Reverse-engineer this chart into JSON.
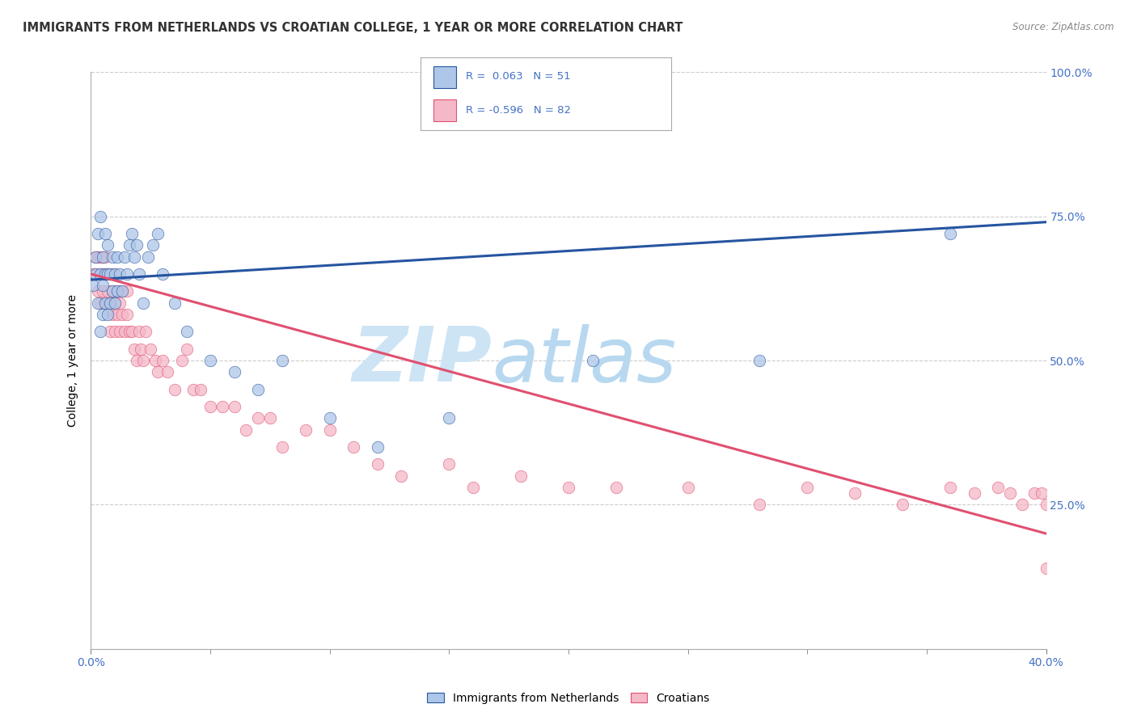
{
  "title": "IMMIGRANTS FROM NETHERLANDS VS CROATIAN COLLEGE, 1 YEAR OR MORE CORRELATION CHART",
  "source": "Source: ZipAtlas.com",
  "xlabel_ticks_show": [
    "0.0%",
    "40.0%"
  ],
  "xlabel_tick_vals_show": [
    0.0,
    0.4
  ],
  "xlabel_minor_tick_vals": [
    0.05,
    0.1,
    0.15,
    0.2,
    0.25,
    0.3,
    0.35
  ],
  "ylabel": "College, 1 year or more",
  "ylabel_ticks": [
    "100.0%",
    "75.0%",
    "50.0%",
    "25.0%"
  ],
  "ylabel_tick_vals": [
    1.0,
    0.75,
    0.5,
    0.25
  ],
  "xlim": [
    0.0,
    0.4
  ],
  "ylim": [
    0.0,
    1.0
  ],
  "legend_labels": [
    "Immigrants from Netherlands",
    "Croatians"
  ],
  "R_netherlands": 0.063,
  "N_netherlands": 51,
  "R_croatians": -0.596,
  "N_croatians": 82,
  "color_netherlands": "#aec6e8",
  "color_croatians": "#f4b8c8",
  "line_color_netherlands": "#2655a0",
  "line_color_croatians": "#e05070",
  "watermark_zip": "ZIP",
  "watermark_atlas": "atlas",
  "watermark_color": "#ddeeff",
  "watermark_atlas_color": "#c8ddf0",
  "background_color": "#ffffff",
  "grid_color": "#cccccc",
  "right_tick_color": "#4472c4",
  "title_fontsize": 10.5,
  "label_fontsize": 10,
  "tick_fontsize": 10,
  "netherlands_x": [
    0.001,
    0.002,
    0.002,
    0.003,
    0.003,
    0.004,
    0.004,
    0.004,
    0.005,
    0.005,
    0.005,
    0.006,
    0.006,
    0.006,
    0.007,
    0.007,
    0.007,
    0.008,
    0.008,
    0.009,
    0.009,
    0.01,
    0.01,
    0.011,
    0.011,
    0.012,
    0.013,
    0.014,
    0.015,
    0.016,
    0.017,
    0.018,
    0.019,
    0.02,
    0.022,
    0.024,
    0.026,
    0.028,
    0.03,
    0.035,
    0.04,
    0.05,
    0.06,
    0.07,
    0.08,
    0.1,
    0.12,
    0.15,
    0.21,
    0.28,
    0.36
  ],
  "netherlands_y": [
    0.63,
    0.65,
    0.68,
    0.6,
    0.72,
    0.55,
    0.65,
    0.75,
    0.58,
    0.63,
    0.68,
    0.6,
    0.65,
    0.72,
    0.58,
    0.65,
    0.7,
    0.6,
    0.65,
    0.62,
    0.68,
    0.6,
    0.65,
    0.62,
    0.68,
    0.65,
    0.62,
    0.68,
    0.65,
    0.7,
    0.72,
    0.68,
    0.7,
    0.65,
    0.6,
    0.68,
    0.7,
    0.72,
    0.65,
    0.6,
    0.55,
    0.5,
    0.48,
    0.45,
    0.5,
    0.4,
    0.35,
    0.4,
    0.5,
    0.5,
    0.72
  ],
  "croatians_x": [
    0.001,
    0.002,
    0.002,
    0.003,
    0.003,
    0.004,
    0.004,
    0.004,
    0.005,
    0.005,
    0.005,
    0.006,
    0.006,
    0.006,
    0.007,
    0.007,
    0.008,
    0.008,
    0.008,
    0.009,
    0.009,
    0.01,
    0.01,
    0.01,
    0.011,
    0.011,
    0.012,
    0.012,
    0.013,
    0.013,
    0.014,
    0.015,
    0.015,
    0.016,
    0.017,
    0.018,
    0.019,
    0.02,
    0.021,
    0.022,
    0.023,
    0.025,
    0.027,
    0.028,
    0.03,
    0.032,
    0.035,
    0.038,
    0.04,
    0.043,
    0.046,
    0.05,
    0.055,
    0.06,
    0.065,
    0.07,
    0.075,
    0.08,
    0.09,
    0.1,
    0.11,
    0.12,
    0.13,
    0.15,
    0.16,
    0.18,
    0.2,
    0.22,
    0.25,
    0.28,
    0.3,
    0.32,
    0.34,
    0.36,
    0.37,
    0.38,
    0.385,
    0.39,
    0.395,
    0.398,
    0.4,
    0.4
  ],
  "croatians_y": [
    0.65,
    0.68,
    0.65,
    0.62,
    0.68,
    0.65,
    0.6,
    0.68,
    0.62,
    0.65,
    0.68,
    0.6,
    0.65,
    0.68,
    0.62,
    0.65,
    0.6,
    0.65,
    0.55,
    0.62,
    0.58,
    0.6,
    0.65,
    0.55,
    0.58,
    0.62,
    0.55,
    0.6,
    0.58,
    0.62,
    0.55,
    0.58,
    0.62,
    0.55,
    0.55,
    0.52,
    0.5,
    0.55,
    0.52,
    0.5,
    0.55,
    0.52,
    0.5,
    0.48,
    0.5,
    0.48,
    0.45,
    0.5,
    0.52,
    0.45,
    0.45,
    0.42,
    0.42,
    0.42,
    0.38,
    0.4,
    0.4,
    0.35,
    0.38,
    0.38,
    0.35,
    0.32,
    0.3,
    0.32,
    0.28,
    0.3,
    0.28,
    0.28,
    0.28,
    0.25,
    0.28,
    0.27,
    0.25,
    0.28,
    0.27,
    0.28,
    0.27,
    0.25,
    0.27,
    0.27,
    0.25,
    0.14
  ]
}
